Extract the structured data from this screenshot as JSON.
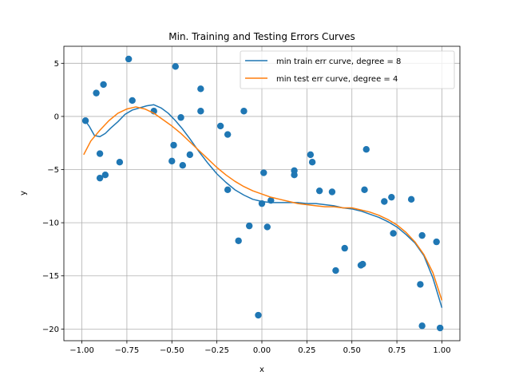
{
  "chart_data": {
    "type": "scatter",
    "title": "Min. Training and Testing Errors Curves",
    "xlabel": "x",
    "ylabel": "y",
    "xlim": [
      -1.1,
      1.1
    ],
    "ylim": [
      -21.1,
      6.6
    ],
    "xticks": [
      -1.0,
      -0.75,
      -0.5,
      -0.25,
      0.0,
      0.25,
      0.5,
      0.75,
      1.0
    ],
    "xtick_labels": [
      "−1.00",
      "−0.75",
      "−0.50",
      "−0.25",
      "0.00",
      "0.25",
      "0.50",
      "0.75",
      "1.00"
    ],
    "yticks": [
      -20,
      -15,
      -10,
      -5,
      0,
      5
    ],
    "ytick_labels": [
      "−20",
      "−15",
      "−10",
      "−5",
      "0",
      "5"
    ],
    "grid": true,
    "legend_position": "upper right",
    "colors": {
      "scatter": "#1f77b4",
      "train": "#1f77b4",
      "test": "#ff7f0e"
    },
    "points": [
      {
        "x": -0.98,
        "y": -0.4
      },
      {
        "x": -0.92,
        "y": 2.2
      },
      {
        "x": -0.9,
        "y": -3.5
      },
      {
        "x": -0.9,
        "y": -5.8
      },
      {
        "x": -0.88,
        "y": 3.0
      },
      {
        "x": -0.87,
        "y": -5.5
      },
      {
        "x": -0.79,
        "y": -4.3
      },
      {
        "x": -0.74,
        "y": 5.4
      },
      {
        "x": -0.72,
        "y": 1.5
      },
      {
        "x": -0.6,
        "y": 0.5
      },
      {
        "x": -0.5,
        "y": -4.2
      },
      {
        "x": -0.49,
        "y": -2.7
      },
      {
        "x": -0.48,
        "y": 4.7
      },
      {
        "x": -0.45,
        "y": -0.1
      },
      {
        "x": -0.44,
        "y": -4.6
      },
      {
        "x": -0.4,
        "y": -3.6
      },
      {
        "x": -0.34,
        "y": 2.6
      },
      {
        "x": -0.34,
        "y": 0.5
      },
      {
        "x": -0.23,
        "y": -0.9
      },
      {
        "x": -0.19,
        "y": -1.7
      },
      {
        "x": -0.19,
        "y": -6.9
      },
      {
        "x": -0.13,
        "y": -11.7
      },
      {
        "x": -0.1,
        "y": 0.5
      },
      {
        "x": -0.07,
        "y": -10.3
      },
      {
        "x": -0.02,
        "y": -18.7
      },
      {
        "x": 0.0,
        "y": -8.2
      },
      {
        "x": 0.01,
        "y": -5.3
      },
      {
        "x": 0.03,
        "y": -10.4
      },
      {
        "x": 0.05,
        "y": -7.9
      },
      {
        "x": 0.18,
        "y": -5.1
      },
      {
        "x": 0.18,
        "y": -5.5
      },
      {
        "x": 0.27,
        "y": -3.6
      },
      {
        "x": 0.28,
        "y": -4.3
      },
      {
        "x": 0.32,
        "y": -7.0
      },
      {
        "x": 0.39,
        "y": -7.1
      },
      {
        "x": 0.41,
        "y": -14.5
      },
      {
        "x": 0.46,
        "y": -12.4
      },
      {
        "x": 0.55,
        "y": -14.0
      },
      {
        "x": 0.56,
        "y": -13.9
      },
      {
        "x": 0.57,
        "y": -6.9
      },
      {
        "x": 0.58,
        "y": -3.1
      },
      {
        "x": 0.68,
        "y": -8.0
      },
      {
        "x": 0.72,
        "y": -7.6
      },
      {
        "x": 0.73,
        "y": -11.0
      },
      {
        "x": 0.83,
        "y": -7.8
      },
      {
        "x": 0.88,
        "y": -15.8
      },
      {
        "x": 0.89,
        "y": -19.7
      },
      {
        "x": 0.89,
        "y": -11.2
      },
      {
        "x": 0.97,
        "y": -11.8
      },
      {
        "x": 0.99,
        "y": -19.9
      }
    ],
    "series": [
      {
        "name": "min train err curve, degree = 8",
        "x": [
          -0.99,
          -0.96,
          -0.93,
          -0.9,
          -0.87,
          -0.84,
          -0.8,
          -0.76,
          -0.72,
          -0.68,
          -0.64,
          -0.6,
          -0.56,
          -0.52,
          -0.48,
          -0.44,
          -0.4,
          -0.35,
          -0.3,
          -0.25,
          -0.2,
          -0.15,
          -0.1,
          -0.05,
          0.0,
          0.05,
          0.1,
          0.15,
          0.2,
          0.25,
          0.3,
          0.35,
          0.4,
          0.45,
          0.5,
          0.55,
          0.6,
          0.65,
          0.7,
          0.75,
          0.8,
          0.85,
          0.9,
          0.95,
          1.0
        ],
        "y": [
          -0.2,
          -0.9,
          -1.8,
          -1.9,
          -1.6,
          -1.1,
          -0.5,
          0.2,
          0.6,
          0.8,
          1.0,
          1.1,
          0.8,
          0.3,
          -0.4,
          -1.2,
          -2.1,
          -3.3,
          -4.4,
          -5.4,
          -6.2,
          -6.9,
          -7.4,
          -7.8,
          -8.0,
          -8.1,
          -8.1,
          -8.1,
          -8.1,
          -8.2,
          -8.2,
          -8.3,
          -8.4,
          -8.6,
          -8.7,
          -8.9,
          -9.2,
          -9.5,
          -9.9,
          -10.4,
          -11.1,
          -11.9,
          -13.1,
          -15.2,
          -18.0
        ]
      },
      {
        "name": "min test err curve, degree = 4",
        "x": [
          -0.99,
          -0.95,
          -0.9,
          -0.85,
          -0.8,
          -0.75,
          -0.7,
          -0.65,
          -0.6,
          -0.55,
          -0.5,
          -0.45,
          -0.4,
          -0.35,
          -0.3,
          -0.25,
          -0.2,
          -0.15,
          -0.1,
          -0.05,
          0.0,
          0.05,
          0.1,
          0.15,
          0.2,
          0.25,
          0.3,
          0.35,
          0.4,
          0.45,
          0.5,
          0.55,
          0.6,
          0.65,
          0.7,
          0.75,
          0.8,
          0.85,
          0.9,
          0.95,
          1.0
        ],
        "y": [
          -3.6,
          -2.3,
          -1.3,
          -0.4,
          0.3,
          0.7,
          0.9,
          0.7,
          0.3,
          -0.3,
          -0.9,
          -1.6,
          -2.4,
          -3.2,
          -4.0,
          -4.8,
          -5.5,
          -6.1,
          -6.6,
          -7.0,
          -7.3,
          -7.6,
          -7.8,
          -8.0,
          -8.2,
          -8.3,
          -8.4,
          -8.5,
          -8.5,
          -8.6,
          -8.6,
          -8.8,
          -9.0,
          -9.3,
          -9.7,
          -10.2,
          -10.9,
          -11.8,
          -13.0,
          -14.7,
          -17.3
        ]
      }
    ]
  }
}
